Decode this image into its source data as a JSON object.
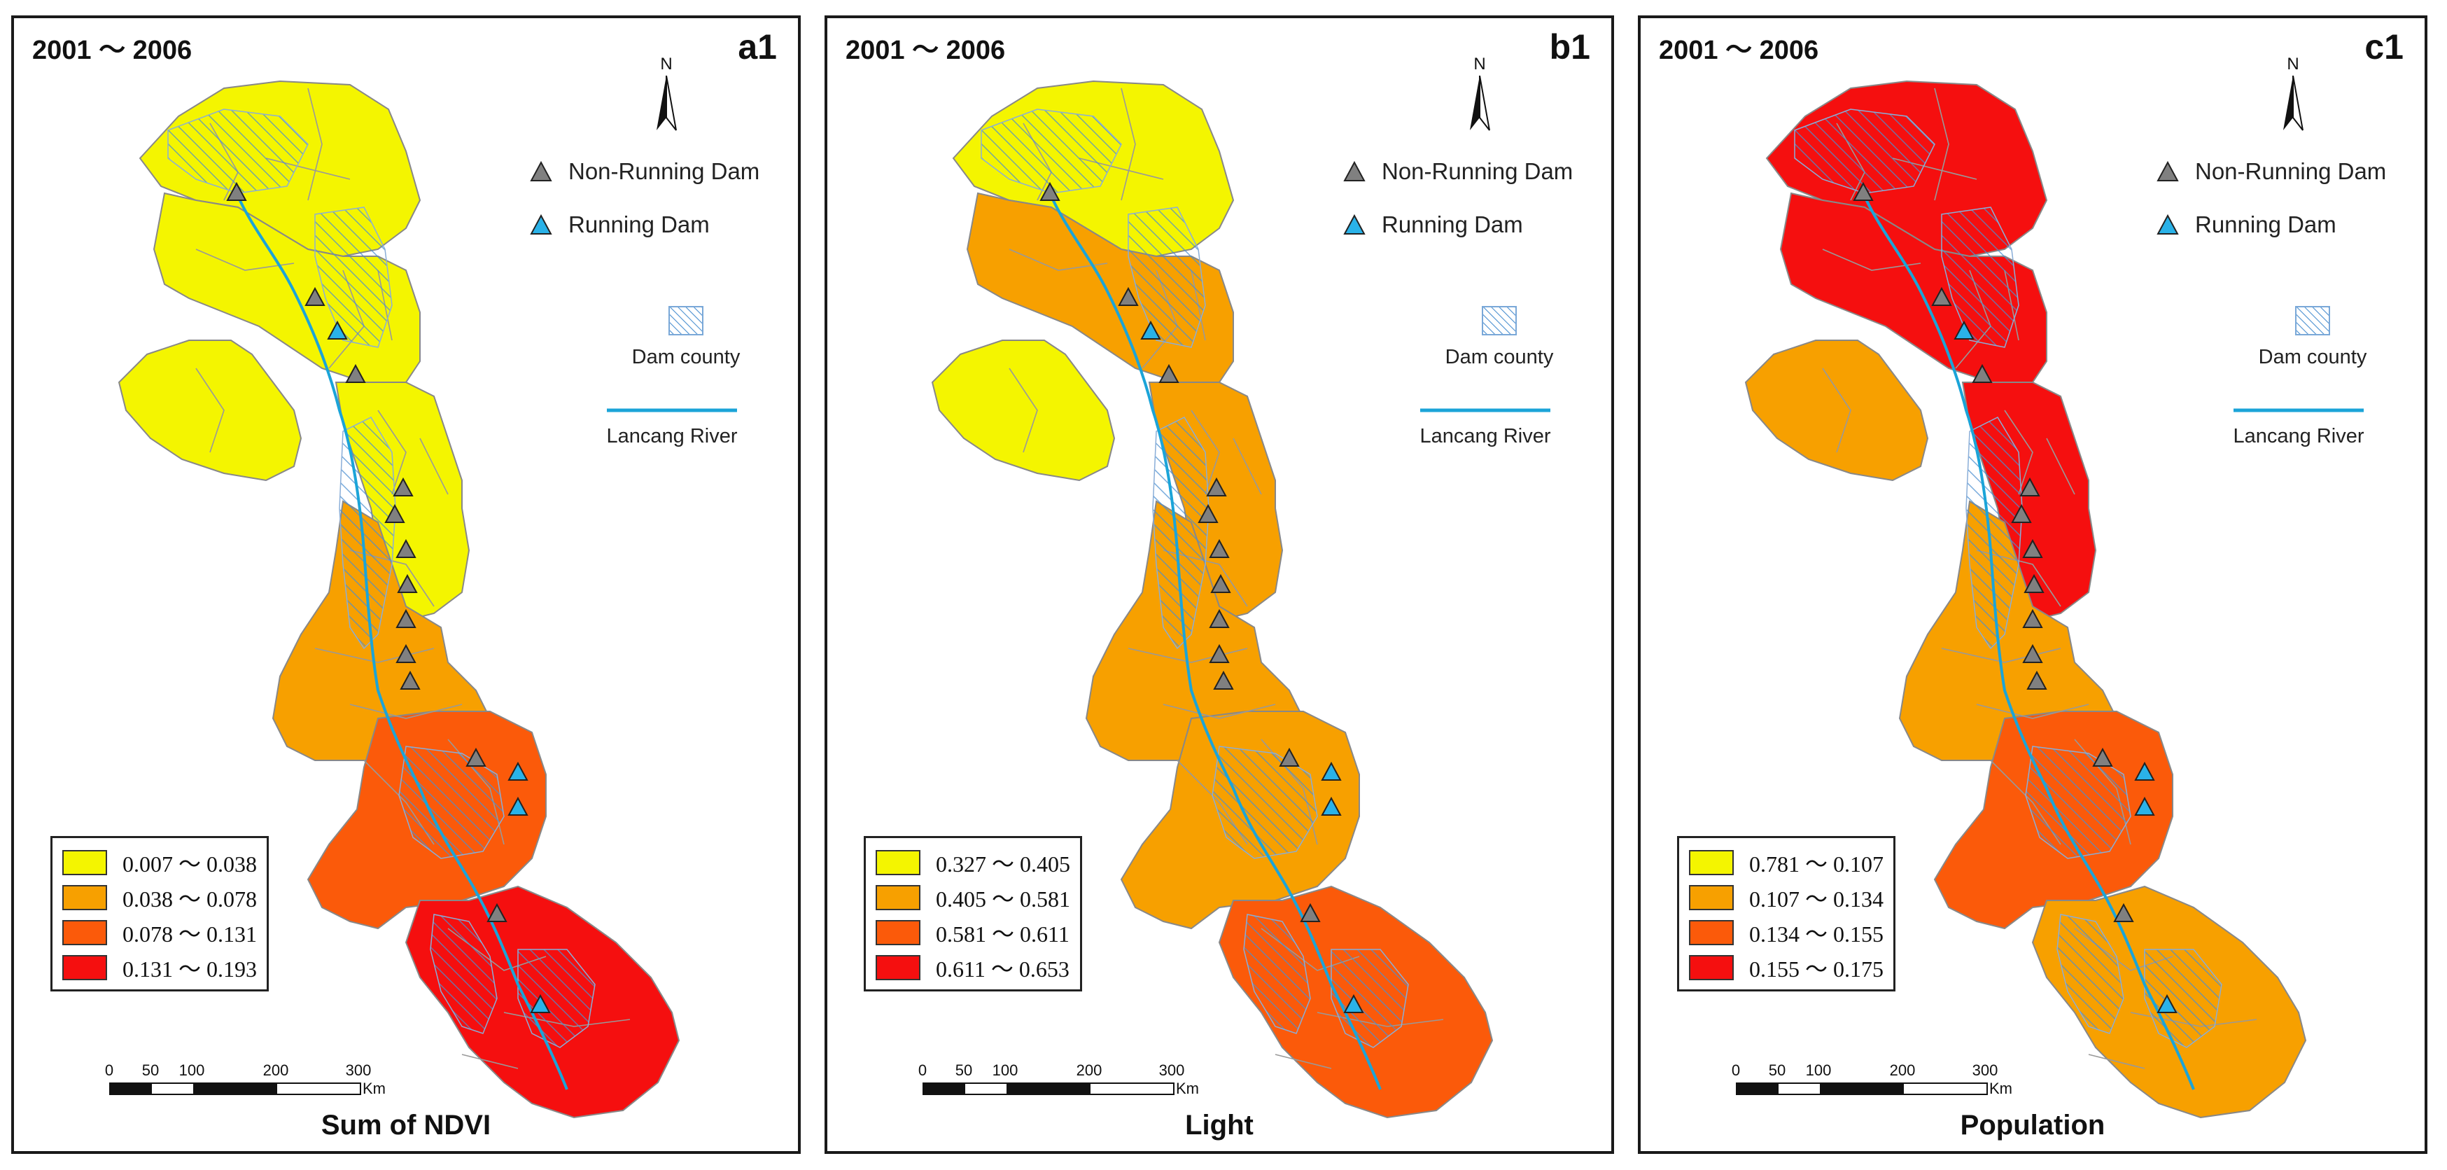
{
  "colors": {
    "yellow": "#f4f500",
    "orange": "#f7a000",
    "dark_orange": "#fb5a0a",
    "red": "#f50f0f",
    "river": "#1ba4d8",
    "running_dam": "#2ab2e8",
    "non_running_dam": "#808080",
    "hatch": "#4a8fd0"
  },
  "shared": {
    "period": "2001 ～ 2006",
    "north_label": "N",
    "non_running_dam_label": "Non-Running Dam",
    "running_dam_label": "Running Dam",
    "dam_county_label": "Dam county",
    "river_label": "Lancang River",
    "scale_ticks": [
      "0",
      "50",
      "100",
      "200",
      "300"
    ],
    "scale_unit": "Km"
  },
  "panels": [
    {
      "id": "a1",
      "label": "a1",
      "title": "Sum of NDVI",
      "legend": [
        "0.007 ～ 0.038",
        "0.038 ～ 0.078",
        "0.078 ～ 0.131",
        "0.131 ～ 0.193"
      ],
      "zones": [
        "yellow",
        "yellow",
        "yellow",
        "yellow",
        "orange",
        "dark_orange",
        "red"
      ]
    },
    {
      "id": "b1",
      "label": "b1",
      "title": "Light",
      "legend": [
        "0.327 ～ 0.405",
        "0.405 ～ 0.581",
        "0.581 ～ 0.611",
        "0.611 ～ 0.653"
      ],
      "zones": [
        "yellow",
        "orange",
        "yellow",
        "orange",
        "orange",
        "orange",
        "dark_orange"
      ]
    },
    {
      "id": "c1",
      "label": "c1",
      "title": "Population",
      "legend": [
        "0.781 ～ 0.107",
        "0.107 ～ 0.134",
        "0.134 ～ 0.155",
        "0.155 ～ 0.175"
      ],
      "zones": [
        "red",
        "red",
        "orange",
        "red",
        "orange",
        "dark_orange",
        "orange"
      ]
    }
  ],
  "dams": [
    {
      "name": "dam-1",
      "status": "non-running"
    },
    {
      "name": "dam-2",
      "status": "non-running"
    },
    {
      "name": "dam-3",
      "status": "running"
    },
    {
      "name": "dam-4",
      "status": "non-running"
    },
    {
      "name": "dam-5",
      "status": "non-running"
    },
    {
      "name": "dam-6",
      "status": "non-running"
    },
    {
      "name": "dam-7",
      "status": "non-running"
    },
    {
      "name": "dam-8",
      "status": "non-running"
    },
    {
      "name": "dam-9",
      "status": "non-running"
    },
    {
      "name": "dam-10",
      "status": "non-running"
    },
    {
      "name": "dam-11",
      "status": "non-running"
    },
    {
      "name": "dam-12",
      "status": "non-running"
    },
    {
      "name": "dam-13",
      "status": "running"
    },
    {
      "name": "dam-14",
      "status": "running"
    },
    {
      "name": "dam-15",
      "status": "non-running"
    },
    {
      "name": "dam-16",
      "status": "running"
    }
  ]
}
